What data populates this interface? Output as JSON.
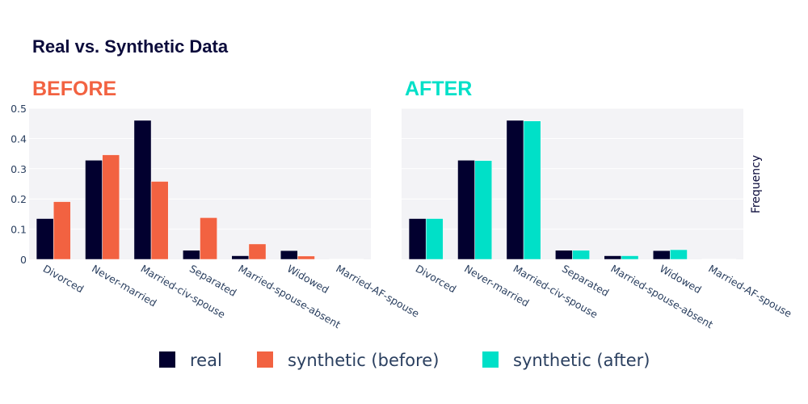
{
  "title": "Real vs. Synthetic Data",
  "colors": {
    "real": "#02002f",
    "before": "#f26241",
    "after": "#00e0c8",
    "plot_bg": "#f3f3f6",
    "grid": "#ffffff"
  },
  "chart_data": [
    {
      "type": "bar",
      "title": "BEFORE",
      "title_color": "#f26241",
      "categories": [
        "Divorced",
        "Never-married",
        "Married-civ-spouse",
        "Separated",
        "Married-spouse-absent",
        "Widowed",
        "Married-AF-spouse"
      ],
      "series": [
        {
          "name": "real",
          "values": [
            0.135,
            0.328,
            0.46,
            0.03,
            0.012,
            0.029,
            0.001
          ]
        },
        {
          "name": "synthetic (before)",
          "values": [
            0.191,
            0.346,
            0.258,
            0.138,
            0.051,
            0.011,
            0.001
          ]
        }
      ],
      "ylim": [
        0,
        0.5
      ],
      "yticks": [
        "0",
        "0.1",
        "0.2",
        "0.3",
        "0.4",
        "0.5"
      ],
      "grid": true
    },
    {
      "type": "bar",
      "title": "AFTER",
      "title_color": "#00e0c8",
      "categories": [
        "Divorced",
        "Never-married",
        "Married-civ-spouse",
        "Separated",
        "Married-spouse-absent",
        "Widowed",
        "Married-AF-spouse"
      ],
      "series": [
        {
          "name": "real",
          "values": [
            0.135,
            0.328,
            0.46,
            0.03,
            0.012,
            0.029,
            0.001
          ]
        },
        {
          "name": "synthetic (after)",
          "values": [
            0.135,
            0.327,
            0.458,
            0.03,
            0.012,
            0.032,
            0.001
          ]
        }
      ],
      "ylim": [
        0,
        0.5
      ],
      "ylabel": "Frequency",
      "grid": true
    }
  ],
  "legend": {
    "placement": "bottom",
    "items": [
      {
        "label": "real",
        "color": "#02002f"
      },
      {
        "label": "synthetic (before)",
        "color": "#f26241"
      },
      {
        "label": "synthetic (after)",
        "color": "#00e0c8"
      }
    ]
  }
}
